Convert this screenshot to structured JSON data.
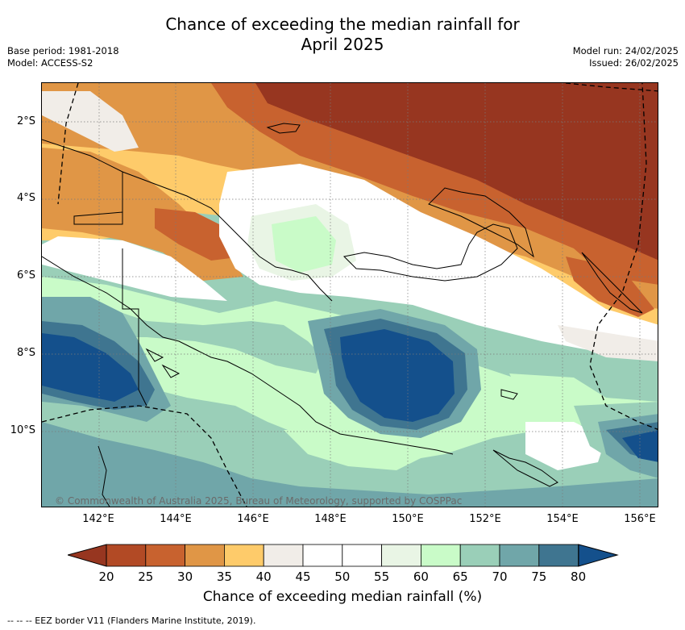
{
  "title_line1": "Chance of exceeding the median rainfall for",
  "title_line2": "April 2025",
  "meta_left": [
    "Base period: 1981-2018",
    "Model: ACCESS-S2"
  ],
  "meta_right": [
    "Model run: 24/02/2025",
    "Issued: 26/02/2025"
  ],
  "y_ticks": [
    "2°S",
    "4°S",
    "6°S",
    "8°S",
    "10°S"
  ],
  "x_ticks": [
    "142°E",
    "144°E",
    "146°E",
    "148°E",
    "150°E",
    "152°E",
    "154°E",
    "156°E"
  ],
  "copyright": "© Commonwealth of Australia 2025, Bureau of Meteorology, supported by COSPPac",
  "colorbar": {
    "labels": [
      "20",
      "25",
      "30",
      "35",
      "40",
      "45",
      "50",
      "55",
      "60",
      "65",
      "70",
      "75",
      "80"
    ],
    "colors": [
      "#b24a25",
      "#c8622f",
      "#e09646",
      "#fecb6a",
      "#f1ede8",
      "#ffffff",
      "#ffffff",
      "#e9f5e5",
      "#c9fbc8",
      "#9acfb8",
      "#70a6a9",
      "#3f7590"
    ],
    "under_color": "#973620",
    "over_color": "#14508c",
    "title": "Chance of exceeding median rainfall (%)"
  },
  "legend_note": "-- -- -- EEZ border V11 (Flanders Marine Institute, 2019)."
}
